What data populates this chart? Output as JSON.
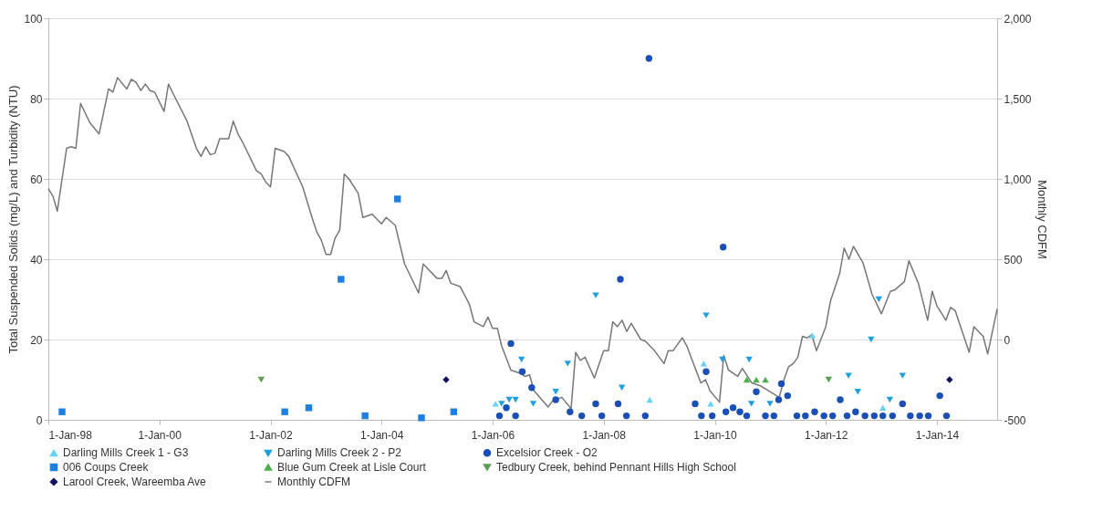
{
  "chart_data": {
    "type": "scatter",
    "ylabel": "Total Suspended Solids (mg/L) and Turbidity (NTU)",
    "y2label": "Monthly CDFM",
    "grid": "y",
    "legend": "bottom",
    "xlim": [
      "1998-01-01",
      "2015-02-01"
    ],
    "xticks": [
      {
        "value": "1998-01-01",
        "label": "1-Jan-98"
      },
      {
        "value": "2000-01-01",
        "label": "1-Jan-00"
      },
      {
        "value": "2002-01-01",
        "label": "1-Jan-02"
      },
      {
        "value": "2004-01-01",
        "label": "1-Jan-04"
      },
      {
        "value": "2006-01-01",
        "label": "1-Jan-06"
      },
      {
        "value": "2008-01-01",
        "label": "1-Jan-08"
      },
      {
        "value": "2010-01-01",
        "label": "1-Jan-10"
      },
      {
        "value": "2012-01-01",
        "label": "1-Jan-12"
      },
      {
        "value": "2014-01-01",
        "label": "1-Jan-14"
      }
    ],
    "ylim": [
      0,
      100
    ],
    "yticks": [
      0,
      20,
      40,
      60,
      80,
      100
    ],
    "y2lim": [
      -500,
      2000
    ],
    "y2ticks": [
      {
        "value": -500,
        "label": "-500"
      },
      {
        "value": 0,
        "label": "0"
      },
      {
        "value": 500,
        "label": "500"
      },
      {
        "value": 1000,
        "label": "1,000"
      },
      {
        "value": 1500,
        "label": "1,500"
      },
      {
        "value": 2000,
        "label": "2,000"
      }
    ],
    "series": [
      {
        "name": "Darling Mills Creek 1 - G3",
        "type": "scatter",
        "marker": "triangle",
        "color": "#66d4f2",
        "x": [
          "2006-01-20",
          "2008-10-30",
          "2009-10-20",
          "2009-12-05",
          "2011-10-05",
          "2013-01-10"
        ],
        "values": [
          4,
          5,
          14,
          4,
          21,
          3
        ]
      },
      {
        "name": "Darling Mills Creek 2 - P2",
        "type": "scatter",
        "marker": "triangle-down",
        "color": "#1ea0dc",
        "x": [
          "2006-03-01",
          "2006-04-20",
          "2006-06-01",
          "2006-07-10",
          "2006-09-25",
          "2007-02-20",
          "2007-05-10",
          "2007-11-10",
          "2008-04-30",
          "2009-11-05",
          "2010-02-20",
          "2010-08-15",
          "2010-08-30",
          "2010-12-30",
          "2012-05-30",
          "2012-07-30",
          "2012-10-25",
          "2012-12-15",
          "2013-02-25",
          "2013-05-20"
        ],
        "values": [
          4,
          5,
          5,
          15,
          4,
          7,
          14,
          31,
          8,
          26,
          15,
          15,
          4,
          4,
          11,
          7,
          20,
          30,
          5,
          11
        ]
      },
      {
        "name": "Excelsior Creek - O2",
        "type": "scatter",
        "marker": "circle",
        "color": "#1a4fb5",
        "x": [
          "2006-02-15",
          "2006-04-01",
          "2006-05-01",
          "2006-06-01",
          "2006-07-15",
          "2006-09-15",
          "2007-02-20",
          "2007-05-25",
          "2007-08-10",
          "2007-11-10",
          "2007-12-20",
          "2008-04-05",
          "2008-04-20",
          "2008-05-30",
          "2008-10-01",
          "2008-10-25",
          "2009-08-25",
          "2009-10-05",
          "2009-11-05",
          "2009-12-15",
          "2010-02-25",
          "2010-03-15",
          "2010-05-01",
          "2010-06-15",
          "2010-07-30",
          "2010-10-01",
          "2010-11-30",
          "2011-01-25",
          "2011-02-25",
          "2011-03-15",
          "2011-04-25",
          "2011-06-25",
          "2011-08-20",
          "2011-10-20",
          "2011-12-20",
          "2012-02-15",
          "2012-04-05",
          "2012-05-20",
          "2012-07-15",
          "2012-09-15",
          "2012-11-15",
          "2013-01-10",
          "2013-03-15",
          "2013-05-20",
          "2013-07-10",
          "2013-09-10",
          "2013-11-05",
          "2014-01-20",
          "2014-03-05"
        ],
        "values": [
          1,
          3,
          19,
          1,
          12,
          8,
          5,
          2,
          1,
          4,
          1,
          4,
          35,
          1,
          1,
          90,
          4,
          1,
          12,
          1,
          43,
          2,
          3,
          2,
          1,
          7,
          1,
          1,
          5,
          9,
          6,
          1,
          1,
          2,
          1,
          1,
          5,
          1,
          2,
          1,
          1,
          1,
          1,
          4,
          1,
          1,
          1,
          6,
          1
        ]
      },
      {
        "name": "006 Coups Creek",
        "type": "scatter",
        "marker": "square",
        "color": "#1e7fe0",
        "x": [
          "1998-04-01",
          "2002-04-05",
          "2002-09-10",
          "2003-04-10",
          "2003-09-15",
          "2004-04-15",
          "2004-09-20",
          "2005-04-20"
        ],
        "values": [
          2,
          2,
          3,
          35,
          1,
          55,
          0.5,
          2
        ]
      },
      {
        "name": "Blue Gum Creek at Lisle Court",
        "type": "scatter",
        "marker": "triangle",
        "color": "#4db04a",
        "x": [
          "2010-07-30",
          "2010-10-01",
          "2010-11-30"
        ],
        "values": [
          10,
          10,
          10
        ]
      },
      {
        "name": "Tedbury Creek, behind Pennant Hills High School",
        "type": "scatter",
        "marker": "triangle-down",
        "color": "#5a9e50",
        "x": [
          "2001-11-01",
          "2012-01-20"
        ],
        "values": [
          10,
          10
        ]
      },
      {
        "name": "Larool Creek, Wareemba Ave",
        "type": "scatter",
        "marker": "diamond",
        "color": "#10105e",
        "x": [
          "2005-03-01",
          "2014-03-25"
        ],
        "values": [
          10,
          10
        ]
      },
      {
        "name": "Monthly CDFM",
        "type": "line",
        "axis": "y2",
        "color": "#777777",
        "x": [
          "1998-01",
          "1998-02",
          "1998-03",
          "1998-05",
          "1998-06",
          "1998-07",
          "1998-08",
          "1998-10",
          "1998-12",
          "1999-02",
          "1999-03",
          "1999-04",
          "1999-06",
          "1999-07",
          "1999-08",
          "1999-09",
          "1999-10",
          "1999-11",
          "1999-12",
          "2000-02",
          "2000-03",
          "2000-04",
          "2000-07",
          "2000-09",
          "2000-10",
          "2000-11",
          "2000-12",
          "2001-01",
          "2001-02",
          "2001-04",
          "2001-05",
          "2001-06",
          "2001-07",
          "2001-10",
          "2001-11",
          "2001-12",
          "2002-01",
          "2002-02",
          "2002-04",
          "2002-05",
          "2002-08",
          "2002-10",
          "2002-11",
          "2002-12",
          "2003-01",
          "2003-02",
          "2003-03",
          "2003-04",
          "2003-05",
          "2003-06",
          "2003-08",
          "2003-09",
          "2003-11",
          "2004-01",
          "2004-02",
          "2004-04",
          "2004-06",
          "2004-09",
          "2004-10",
          "2005-01",
          "2005-02",
          "2005-03",
          "2005-04",
          "2005-06",
          "2005-08",
          "2005-09",
          "2005-11",
          "2005-12",
          "2006-01",
          "2006-02",
          "2006-03",
          "2006-05",
          "2006-07",
          "2006-08",
          "2006-09",
          "2006-10",
          "2007-01",
          "2007-02",
          "2007-04",
          "2007-06",
          "2007-07",
          "2007-08",
          "2007-09",
          "2007-11",
          "2008-01",
          "2008-02",
          "2008-03",
          "2008-04",
          "2008-05",
          "2008-06",
          "2008-07",
          "2008-09",
          "2008-10",
          "2008-12",
          "2009-02",
          "2009-03",
          "2009-04",
          "2009-06",
          "2009-07",
          "2009-10",
          "2009-11",
          "2009-12",
          "2010-02",
          "2010-03",
          "2010-04",
          "2010-06",
          "2010-07",
          "2010-09",
          "2010-11",
          "2011-03",
          "2011-04",
          "2011-05",
          "2011-06",
          "2011-07",
          "2011-08",
          "2011-09",
          "2011-10",
          "2011-11",
          "2012-01",
          "2012-02",
          "2012-04",
          "2012-05",
          "2012-06",
          "2012-07",
          "2012-09",
          "2012-11",
          "2013-01",
          "2013-03",
          "2013-04",
          "2013-06",
          "2013-07",
          "2013-09",
          "2013-11",
          "2013-12",
          "2014-01",
          "2014-03",
          "2014-04",
          "2014-05",
          "2014-08",
          "2014-09",
          "2014-11",
          "2014-12",
          "2015-02"
        ],
        "values": [
          940,
          890,
          800,
          1190,
          1200,
          1190,
          1470,
          1350,
          1280,
          1560,
          1540,
          1630,
          1560,
          1620,
          1600,
          1550,
          1590,
          1550,
          1540,
          1420,
          1590,
          1530,
          1360,
          1190,
          1140,
          1200,
          1150,
          1160,
          1250,
          1250,
          1360,
          1280,
          1230,
          1050,
          1030,
          980,
          950,
          1190,
          1170,
          1140,
          950,
          760,
          670,
          620,
          530,
          530,
          630,
          680,
          1030,
          1000,
          910,
          760,
          780,
          720,
          760,
          710,
          470,
          290,
          470,
          380,
          380,
          430,
          350,
          330,
          220,
          110,
          80,
          140,
          70,
          70,
          -40,
          -190,
          -210,
          -230,
          -220,
          -320,
          -420,
          -380,
          -360,
          -430,
          -80,
          -130,
          -110,
          -240,
          -70,
          -70,
          110,
          80,
          120,
          50,
          100,
          0,
          -10,
          -70,
          -150,
          -70,
          -70,
          10,
          -40,
          -270,
          -250,
          -320,
          -390,
          -100,
          -190,
          -230,
          -180,
          -270,
          -290,
          -360,
          -250,
          -170,
          -150,
          -110,
          20,
          10,
          30,
          -70,
          80,
          240,
          410,
          570,
          500,
          580,
          480,
          280,
          160,
          300,
          310,
          360,
          490,
          350,
          120,
          300,
          210,
          120,
          200,
          180,
          -80,
          80,
          20,
          -90,
          190
        ]
      }
    ]
  }
}
